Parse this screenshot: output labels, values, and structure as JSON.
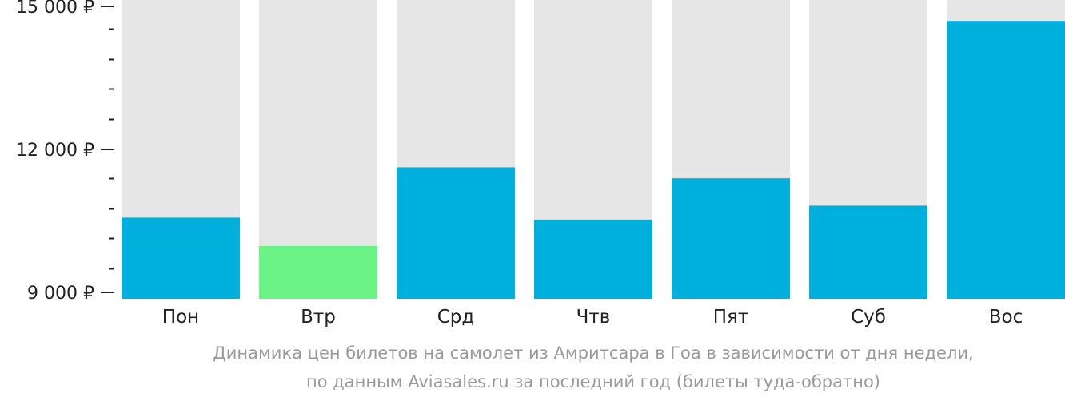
{
  "chart_data": {
    "type": "bar",
    "categories": [
      "Пон",
      "Втр",
      "Срд",
      "Чтв",
      "Пят",
      "Суб",
      "Вос"
    ],
    "values": [
      10630,
      10060,
      11640,
      10590,
      11420,
      10870,
      14580
    ],
    "ylim": [
      9000,
      15000
    ],
    "yticks": [
      {
        "value": 15000,
        "label": "15 000 ₽"
      },
      {
        "value": 12000,
        "label": "12 000 ₽"
      },
      {
        "value": 9000,
        "label": "9 000 ₽"
      }
    ],
    "minor_step": 600,
    "highlight_index": 1,
    "colors": {
      "bar": "#00b0dc",
      "highlight": "#6cf386",
      "track": "#e6e6e6",
      "axis": "#222222"
    },
    "caption": [
      "Динамика цен билетов на самолет из Амритсара в Гоа в зависимости от дня недели,",
      "по данным Aviasales.ru за последний год (билеты туда-обратно)"
    ]
  }
}
